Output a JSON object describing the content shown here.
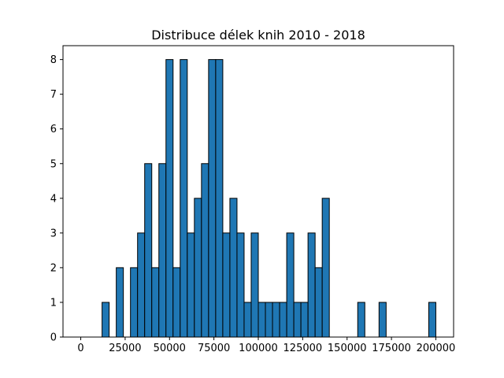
{
  "chart_data": {
    "type": "bar",
    "title": "Distribuce délek knih 2010 - 2018",
    "xlabel": "",
    "ylabel": "",
    "xlim": [
      -10000,
      210000
    ],
    "ylim": [
      0,
      8.4
    ],
    "bin_width": 4000,
    "bins": [
      {
        "x": 12000,
        "count": 1
      },
      {
        "x": 20000,
        "count": 2
      },
      {
        "x": 28000,
        "count": 2
      },
      {
        "x": 32000,
        "count": 3
      },
      {
        "x": 36000,
        "count": 5
      },
      {
        "x": 40000,
        "count": 2
      },
      {
        "x": 44000,
        "count": 5
      },
      {
        "x": 48000,
        "count": 8
      },
      {
        "x": 52000,
        "count": 2
      },
      {
        "x": 56000,
        "count": 8
      },
      {
        "x": 60000,
        "count": 3
      },
      {
        "x": 64000,
        "count": 4
      },
      {
        "x": 68000,
        "count": 5
      },
      {
        "x": 72000,
        "count": 8
      },
      {
        "x": 76000,
        "count": 8
      },
      {
        "x": 80000,
        "count": 3
      },
      {
        "x": 84000,
        "count": 4
      },
      {
        "x": 88000,
        "count": 3
      },
      {
        "x": 92000,
        "count": 1
      },
      {
        "x": 96000,
        "count": 3
      },
      {
        "x": 100000,
        "count": 1
      },
      {
        "x": 104000,
        "count": 1
      },
      {
        "x": 108000,
        "count": 1
      },
      {
        "x": 112000,
        "count": 1
      },
      {
        "x": 116000,
        "count": 3
      },
      {
        "x": 120000,
        "count": 1
      },
      {
        "x": 124000,
        "count": 1
      },
      {
        "x": 128000,
        "count": 3
      },
      {
        "x": 132000,
        "count": 2
      },
      {
        "x": 136000,
        "count": 4
      },
      {
        "x": 156000,
        "count": 1
      },
      {
        "x": 168000,
        "count": 1
      },
      {
        "x": 196000,
        "count": 1
      }
    ],
    "x_ticks": [
      0,
      25000,
      50000,
      75000,
      100000,
      125000,
      150000,
      175000,
      200000
    ],
    "x_tick_labels": [
      "0",
      "25000",
      "50000",
      "75000",
      "100000",
      "125000",
      "150000",
      "175000",
      "200000"
    ],
    "y_ticks": [
      0,
      1,
      2,
      3,
      4,
      5,
      6,
      7,
      8
    ],
    "y_tick_labels": [
      "0",
      "1",
      "2",
      "3",
      "4",
      "5",
      "6",
      "7",
      "8"
    ],
    "bar_color": "#1f77b4",
    "edge_color": "#000000",
    "grid": false,
    "legend": "none"
  }
}
